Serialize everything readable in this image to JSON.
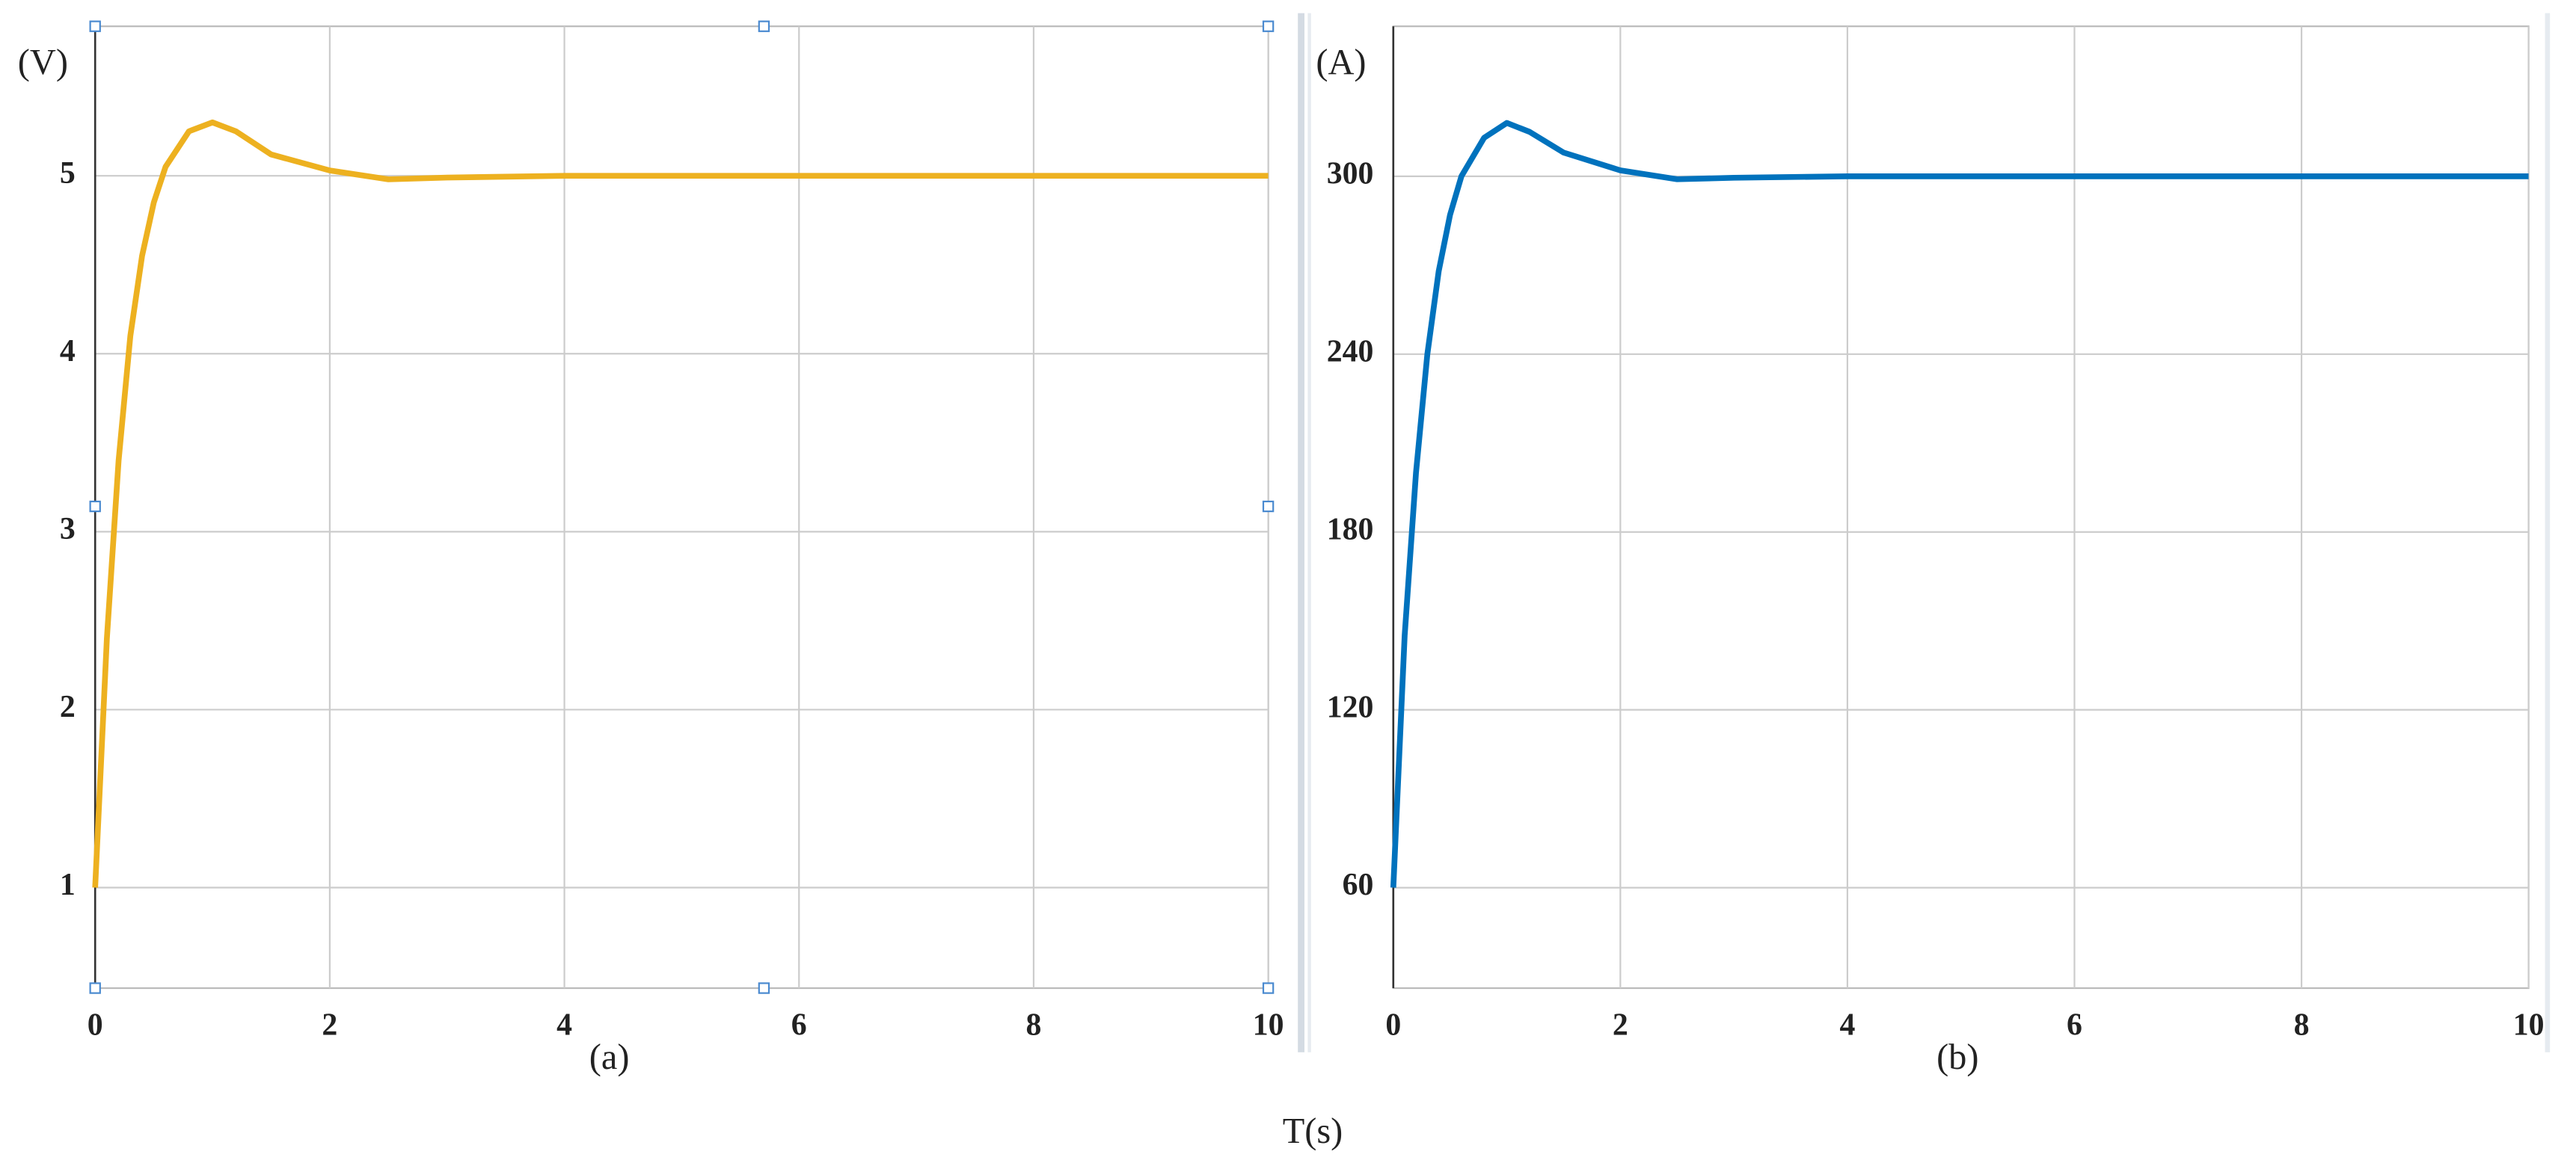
{
  "chart_data": [
    {
      "type": "line",
      "y_label": "(V)",
      "caption": "(a)",
      "color": "#edb120",
      "x": [
        0,
        0.1,
        0.2,
        0.3,
        0.4,
        0.5,
        0.6,
        0.8,
        1.0,
        1.2,
        1.5,
        2,
        2.5,
        3,
        4,
        5,
        6,
        8,
        10
      ],
      "values": [
        1,
        2.4,
        3.4,
        4.1,
        4.55,
        4.85,
        5.05,
        5.25,
        5.3,
        5.25,
        5.12,
        5.03,
        4.98,
        4.99,
        5,
        5,
        5,
        5,
        5
      ],
      "xlim": [
        0,
        10
      ],
      "xticks": [
        0,
        2,
        4,
        6,
        8,
        10
      ],
      "ylim": [
        0.435,
        5.84
      ],
      "yticks": [
        1,
        2,
        3,
        4,
        5
      ],
      "grid": true
    },
    {
      "type": "line",
      "y_label": "(A)",
      "caption": "(b)",
      "color": "#0072bd",
      "x": [
        0,
        0.1,
        0.2,
        0.3,
        0.4,
        0.5,
        0.6,
        0.8,
        1.0,
        1.2,
        1.5,
        2,
        2.5,
        3,
        4,
        5,
        6,
        8,
        10
      ],
      "values": [
        60,
        145,
        200,
        240,
        268,
        287,
        300,
        313,
        318,
        315,
        308,
        302,
        299,
        299.5,
        300,
        300,
        300,
        300,
        300
      ],
      "xlim": [
        0,
        10
      ],
      "xticks": [
        0,
        2,
        4,
        6,
        8,
        10
      ],
      "ylim": [
        26.1,
        350.6
      ],
      "yticks": [
        60,
        120,
        180,
        240,
        300
      ],
      "grid": true
    }
  ],
  "x_label": "T(s)"
}
